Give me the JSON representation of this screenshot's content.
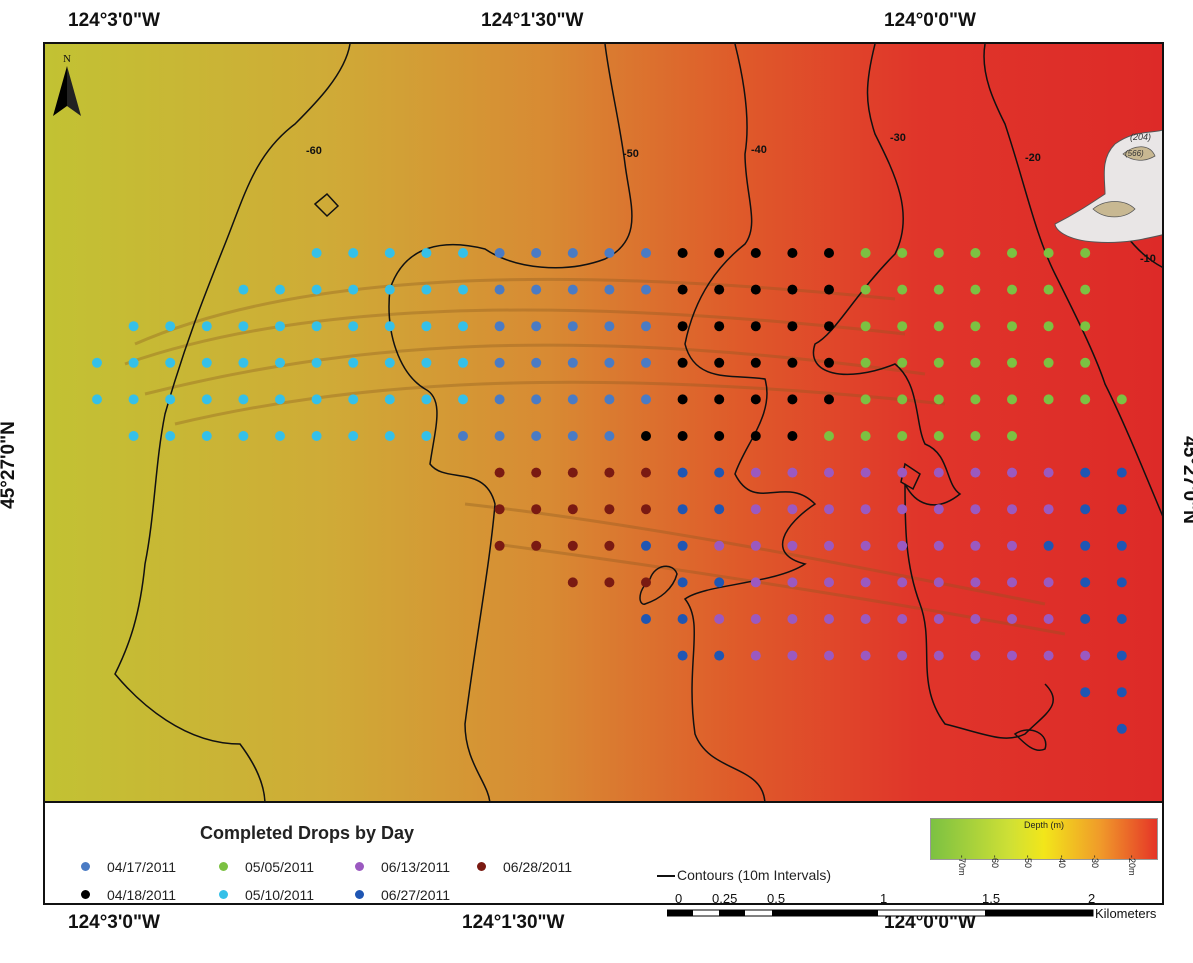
{
  "top_labels": [
    "124°3'0\"W",
    "124°1'30\"W",
    "124°0'0\"W"
  ],
  "bottom_labels": [
    "124°3'0\"W",
    "124°1'30\"W",
    "124°0'0\"W"
  ],
  "left_label": "45°27'0\"N",
  "right_label": "45°27'0\"N",
  "north_label": "N",
  "contour_labels": [
    "-60",
    "-50",
    "-40",
    "-30",
    "-20",
    "-10",
    "-40"
  ],
  "legend": {
    "title": "Completed Drops by Day",
    "items": [
      {
        "label": "04/17/2011",
        "color": "#4a7bc4"
      },
      {
        "label": "05/05/2011",
        "color": "#7cc142"
      },
      {
        "label": "06/13/2011",
        "color": "#9b59c0"
      },
      {
        "label": "06/28/2011",
        "color": "#7a1a12"
      },
      {
        "label": "04/18/2011",
        "color": "#000000"
      },
      {
        "label": "05/10/2011",
        "color": "#35c0e8"
      },
      {
        "label": "06/27/2011",
        "color": "#1f56b3"
      }
    ],
    "contour_text": "Contours (10m Intervals)"
  },
  "colorbar": {
    "title": "Depth (m)",
    "ticks": [
      "-70m",
      "-60",
      "-50",
      "-40",
      "-30",
      "-20m"
    ]
  },
  "scalebar": {
    "labels": [
      "0",
      "0.25",
      "0.5",
      "1",
      "1.5",
      "2"
    ],
    "unit": "Kilometers"
  },
  "land_text": [
    "(204)",
    "(566)"
  ]
}
